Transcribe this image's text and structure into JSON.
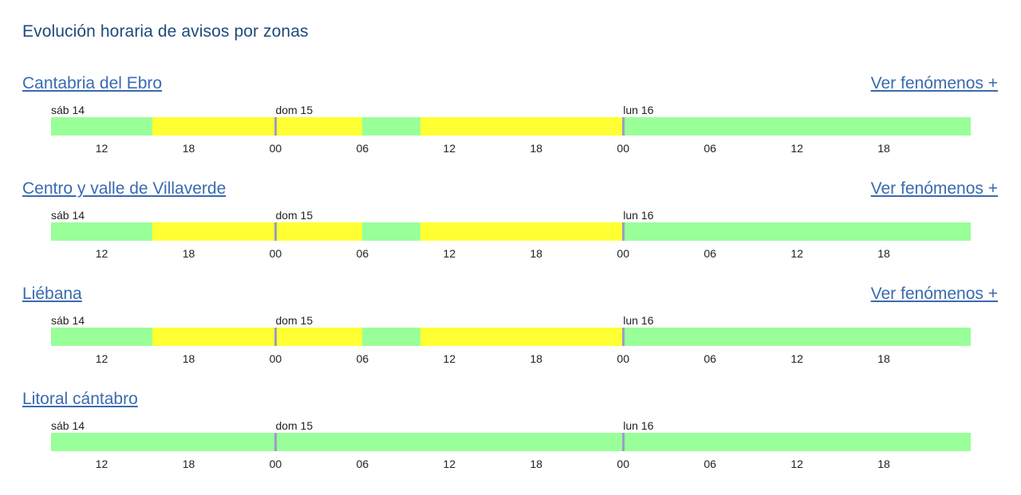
{
  "page": {
    "title": "Evolución horaria de avisos por zonas"
  },
  "colors": {
    "green": "#99ff99",
    "yellow": "#ffff33",
    "day_marker": "#9a9fc8",
    "link": "#3a6ab0",
    "title": "#1e4a7a"
  },
  "timeline": {
    "start": "sáb 14 08:30",
    "end": "lun 17 00:00",
    "day_labels": [
      "sáb 14",
      "dom 15",
      "lun 16"
    ],
    "hour_ticks": [
      "12",
      "18",
      "00",
      "06",
      "12",
      "18",
      "00",
      "06",
      "12",
      "18"
    ]
  },
  "zones": [
    {
      "name": "Cantabria del Ebro",
      "more_link": "Ver fenómenos +",
      "segments": [
        {
          "level": "green",
          "from": "sáb 14 08:30",
          "to": "sáb 14 15:30"
        },
        {
          "level": "yellow",
          "from": "sáb 14 15:30",
          "to": "dom 15 06:00"
        },
        {
          "level": "green",
          "from": "dom 15 06:00",
          "to": "dom 15 10:00"
        },
        {
          "level": "yellow",
          "from": "dom 15 10:00",
          "to": "lun 16 00:00"
        },
        {
          "level": "green",
          "from": "lun 16 00:00",
          "to": "lun 17 00:00"
        }
      ]
    },
    {
      "name": "Centro y valle de Villaverde",
      "more_link": "Ver fenómenos +",
      "segments": [
        {
          "level": "green",
          "from": "sáb 14 08:30",
          "to": "sáb 14 15:30"
        },
        {
          "level": "yellow",
          "from": "sáb 14 15:30",
          "to": "dom 15 06:00"
        },
        {
          "level": "green",
          "from": "dom 15 06:00",
          "to": "dom 15 10:00"
        },
        {
          "level": "yellow",
          "from": "dom 15 10:00",
          "to": "lun 16 00:00"
        },
        {
          "level": "green",
          "from": "lun 16 00:00",
          "to": "lun 17 00:00"
        }
      ]
    },
    {
      "name": "Liébana",
      "more_link": "Ver fenómenos +",
      "segments": [
        {
          "level": "green",
          "from": "sáb 14 08:30",
          "to": "sáb 14 15:30"
        },
        {
          "level": "yellow",
          "from": "sáb 14 15:30",
          "to": "dom 15 06:00"
        },
        {
          "level": "green",
          "from": "dom 15 06:00",
          "to": "dom 15 10:00"
        },
        {
          "level": "yellow",
          "from": "dom 15 10:00",
          "to": "lun 16 00:00"
        },
        {
          "level": "green",
          "from": "lun 16 00:00",
          "to": "lun 17 00:00"
        }
      ]
    },
    {
      "name": "Litoral cántabro",
      "more_link": "",
      "segments": [
        {
          "level": "green",
          "from": "sáb 14 08:30",
          "to": "lun 17 00:00"
        }
      ]
    }
  ]
}
